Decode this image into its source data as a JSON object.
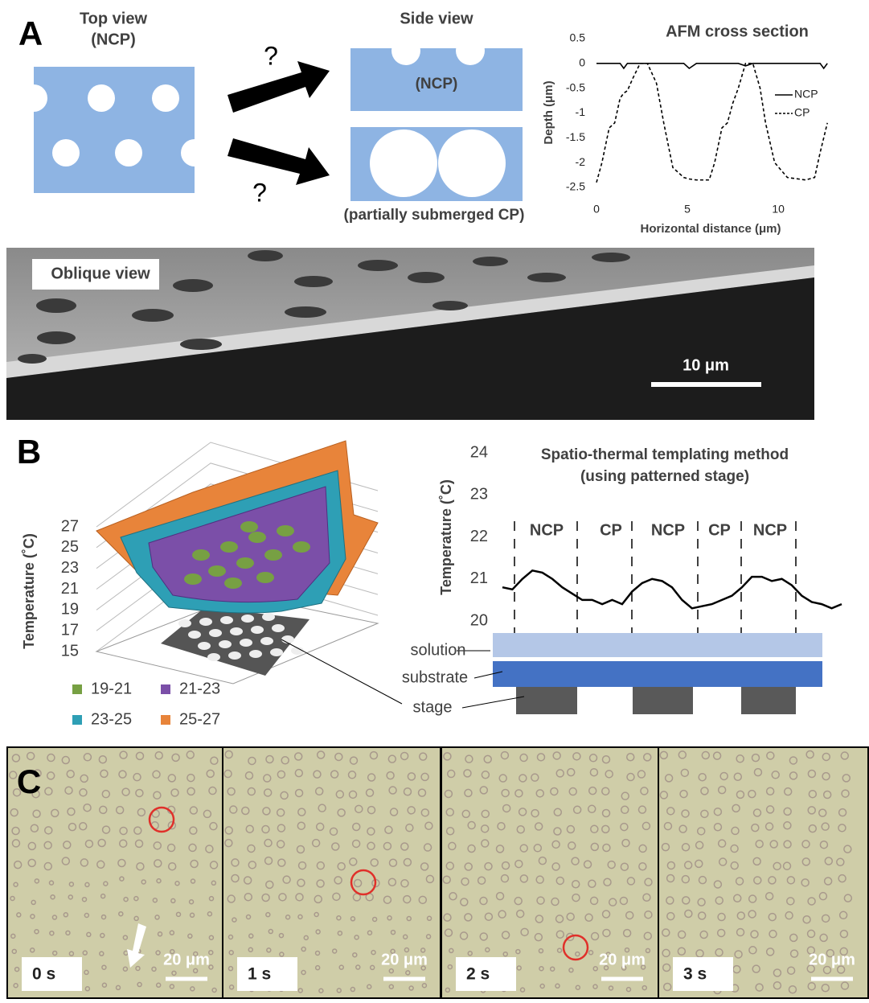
{
  "panels": {
    "a": "A",
    "b": "B",
    "c": "C"
  },
  "top_view": {
    "title": "Top view",
    "subtitle": "(NCP)",
    "questions": [
      "?",
      "?"
    ]
  },
  "side_view": {
    "title": "Side view",
    "top_label": "(NCP)",
    "bottom_label": "(partially submerged CP)"
  },
  "oblique_view": {
    "label": "Oblique view",
    "scale_bar": "10 μm"
  },
  "chart_data": [
    {
      "type": "line",
      "title": "AFM cross section",
      "x_label": "Horizontal distance (μm)",
      "y_label": "Depth (μm)",
      "x": [
        0,
        0.3,
        0.7,
        1.0,
        1.3,
        1.5,
        1.7,
        2.0,
        2.4,
        2.8,
        3.3,
        3.7,
        4.2,
        4.8,
        5.1,
        5.5,
        6.2,
        6.5,
        6.9,
        7.2,
        7.5,
        7.8,
        8.2,
        8.6,
        9.0,
        9.3,
        9.8,
        10.5,
        11.5,
        12.0,
        12.3,
        12.5,
        12.7
      ],
      "series": [
        {
          "name": "NCP",
          "color": "#000000",
          "style": "solid",
          "values": [
            0,
            0,
            0,
            0,
            0,
            -0.1,
            0,
            0,
            0,
            0,
            0,
            0,
            0,
            0,
            -0.1,
            0,
            0,
            0,
            0,
            0,
            0,
            0,
            -0.05,
            0,
            0,
            0,
            0,
            0,
            0,
            0,
            0,
            -0.1,
            0
          ]
        },
        {
          "name": "CP",
          "color": "#000000",
          "style": "dashed",
          "values": [
            -2.4,
            -2.0,
            -1.3,
            -1.2,
            -0.7,
            -0.6,
            -0.55,
            -0.3,
            0,
            0,
            -0.4,
            -1.2,
            -2.1,
            -2.3,
            -2.33,
            -2.35,
            -2.35,
            -2.0,
            -1.3,
            -1.2,
            -0.8,
            -0.5,
            0,
            0,
            -0.5,
            -1.2,
            -2.0,
            -2.3,
            -2.35,
            -2.3,
            -1.8,
            -1.5,
            -1.2
          ]
        }
      ],
      "xlim": [
        0,
        13
      ],
      "xticks": [
        0,
        5,
        10
      ],
      "ylim": [
        -2.5,
        0.5
      ],
      "yticks": [
        0.5,
        0,
        -0.5,
        -1,
        -1.5,
        -2,
        -2.5
      ]
    },
    {
      "type": "line",
      "title": "Spatio-thermal templating method",
      "subtitle": "(using patterned stage)",
      "y_label": "Temperature (˚C)",
      "color": "#000000",
      "values": [
        20.8,
        20.75,
        21.0,
        21.2,
        21.15,
        21.0,
        20.8,
        20.65,
        20.5,
        20.5,
        20.4,
        20.5,
        20.4,
        20.7,
        20.9,
        21.0,
        20.95,
        20.8,
        20.5,
        20.3,
        20.35,
        20.4,
        20.5,
        20.6,
        20.8,
        21.05,
        21.05,
        20.95,
        21.0,
        20.85,
        20.6,
        20.45,
        20.4,
        20.3,
        20.4
      ],
      "ylim": [
        20,
        24
      ],
      "yticks": [
        20,
        21,
        22,
        23,
        24
      ]
    },
    {
      "type": "surface",
      "z_label": "Temperature (˚C)",
      "zlim": [
        15,
        27
      ],
      "zticks": [
        15,
        17,
        19,
        21,
        23,
        25,
        27
      ],
      "legend": [
        {
          "name": "19-21",
          "color": "#77a043"
        },
        {
          "name": "21-23",
          "color": "#7b4fa8"
        },
        {
          "name": "23-25",
          "color": "#2e9fb5"
        },
        {
          "name": "25-27",
          "color": "#e8843a"
        }
      ]
    }
  ],
  "stage_diagram": {
    "regions": [
      "NCP",
      "CP",
      "NCP",
      "CP",
      "NCP"
    ],
    "layers": [
      "solution",
      "substrate",
      "stage"
    ]
  },
  "frames": [
    {
      "time": "0 s",
      "scale_bar": "20 μm"
    },
    {
      "time": "1 s",
      "scale_bar": "20 μm"
    },
    {
      "time": "2 s",
      "scale_bar": "20 μm"
    },
    {
      "time": "3 s",
      "scale_bar": "20 μm"
    }
  ]
}
